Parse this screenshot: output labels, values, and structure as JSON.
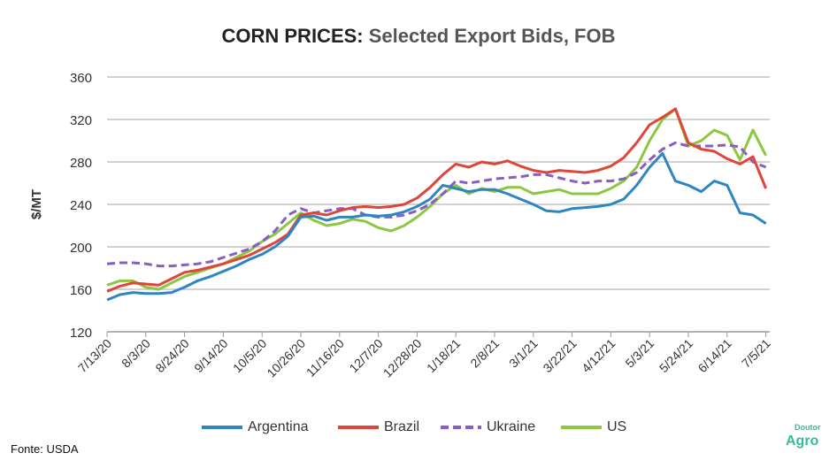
{
  "chart_data": {
    "type": "line",
    "title": "CORN PRICES:",
    "subtitle": "Selected Export Bids, FOB",
    "ylabel": "$/MT",
    "xlabel": "",
    "ylim": [
      120,
      360
    ],
    "yticks": [
      120,
      160,
      200,
      240,
      280,
      320,
      360
    ],
    "xtick_labels": [
      "7/13/20",
      "8/3/20",
      "8/24/20",
      "9/14/20",
      "10/5/20",
      "10/26/20",
      "11/16/20",
      "12/7/20",
      "12/28/20",
      "1/18/21",
      "2/8/21",
      "3/1/21",
      "3/22/21",
      "4/12/21",
      "5/3/21",
      "5/24/21",
      "6/14/21",
      "7/5/21"
    ],
    "grid": true,
    "legend": "bottom",
    "x": [
      "7/13/20",
      "7/20/20",
      "7/27/20",
      "8/3/20",
      "8/10/20",
      "8/17/20",
      "8/24/20",
      "8/31/20",
      "9/7/20",
      "9/14/20",
      "9/21/20",
      "9/28/20",
      "10/5/20",
      "10/12/20",
      "10/19/20",
      "10/26/20",
      "11/2/20",
      "11/9/20",
      "11/16/20",
      "11/23/20",
      "11/30/20",
      "12/7/20",
      "12/14/20",
      "12/21/20",
      "12/28/20",
      "1/4/21",
      "1/11/21",
      "1/18/21",
      "1/25/21",
      "2/1/21",
      "2/8/21",
      "2/15/21",
      "2/22/21",
      "3/1/21",
      "3/8/21",
      "3/15/21",
      "3/22/21",
      "3/29/21",
      "4/5/21",
      "4/12/21",
      "4/19/21",
      "4/26/21",
      "5/3/21",
      "5/10/21",
      "5/17/21",
      "5/24/21",
      "5/31/21",
      "6/7/21",
      "6/14/21",
      "6/21/21",
      "6/28/21",
      "7/5/21"
    ],
    "series": [
      {
        "name": "Argentina",
        "color": "#2e86c1",
        "dashed": false,
        "values": [
          150,
          155,
          157,
          156,
          156,
          157,
          162,
          168,
          172,
          177,
          182,
          188,
          193,
          200,
          210,
          228,
          229,
          225,
          228,
          228,
          230,
          229,
          230,
          233,
          238,
          245,
          258,
          255,
          252,
          254,
          254,
          250,
          245,
          240,
          234,
          233,
          236,
          237,
          238,
          240,
          245,
          258,
          275,
          288,
          262,
          258,
          252,
          262,
          258,
          232,
          230,
          222
        ]
      },
      {
        "name": "Brazil",
        "color": "#e0453a",
        "dashed": false,
        "values": [
          158,
          163,
          166,
          165,
          164,
          170,
          176,
          178,
          181,
          184,
          188,
          192,
          198,
          204,
          212,
          230,
          232,
          230,
          234,
          237,
          238,
          237,
          238,
          240,
          246,
          256,
          268,
          278,
          275,
          280,
          278,
          281,
          276,
          272,
          270,
          272,
          271,
          270,
          272,
          276,
          284,
          298,
          315,
          322,
          330,
          298,
          292,
          290,
          283,
          278,
          285,
          255
        ]
      },
      {
        "name": "Ukraine",
        "color": "#8a5cc7",
        "dashed": true,
        "values": [
          184,
          185,
          185,
          184,
          182,
          182,
          183,
          184,
          186,
          190,
          194,
          198,
          205,
          215,
          230,
          236,
          232,
          234,
          236,
          236,
          230,
          228,
          228,
          230,
          234,
          240,
          250,
          262,
          260,
          262,
          264,
          265,
          266,
          268,
          268,
          265,
          262,
          260,
          262,
          262,
          264,
          270,
          282,
          292,
          298,
          295,
          295,
          295,
          296,
          294,
          280,
          275
        ]
      },
      {
        "name": "US",
        "color": "#8dc63f",
        "dashed": false,
        "values": [
          164,
          168,
          168,
          162,
          160,
          166,
          172,
          176,
          180,
          184,
          190,
          196,
          205,
          212,
          222,
          232,
          225,
          220,
          222,
          226,
          224,
          218,
          215,
          220,
          228,
          238,
          250,
          258,
          250,
          255,
          252,
          256,
          256,
          250,
          252,
          254,
          250,
          250,
          250,
          255,
          262,
          275,
          300,
          320,
          330,
          295,
          300,
          310,
          305,
          282,
          310,
          286
        ]
      }
    ]
  },
  "source": "Fonte: USDA",
  "logo": {
    "line1": "Doutor",
    "line2": "Agro"
  }
}
